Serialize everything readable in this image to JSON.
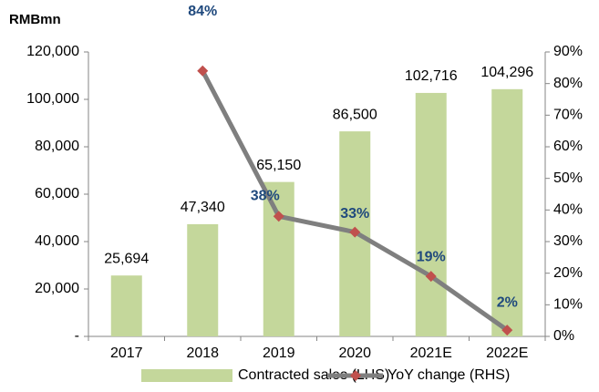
{
  "chart_data": {
    "type": "bar_line",
    "y_label": "RMBmn",
    "categories": [
      "2017",
      "2018",
      "2019",
      "2020",
      "2021E",
      "2022E"
    ],
    "series": [
      {
        "name": "Contracted sales (LHS)",
        "type": "bar",
        "color": "#c4d79b",
        "axis": "y",
        "values": [
          25694,
          47340,
          65150,
          86500,
          102716,
          104296
        ],
        "value_labels": [
          "25,694",
          "47,340",
          "65,150",
          "86,500",
          "102,716",
          "104,296"
        ]
      },
      {
        "name": "YoY change (RHS)",
        "type": "line",
        "color": "#7f7f7f",
        "marker_color": "#c0504d",
        "axis": "y2",
        "values": [
          null,
          84,
          38,
          33,
          19,
          2
        ],
        "value_labels": [
          null,
          "84%",
          "38%",
          "33%",
          "19%",
          "2%"
        ]
      }
    ],
    "ylim": [
      0,
      120000
    ],
    "yticks": [
      {
        "value": 0,
        "label": "-"
      },
      {
        "value": 20000,
        "label": "20,000"
      },
      {
        "value": 40000,
        "label": "40,000"
      },
      {
        "value": 60000,
        "label": "60,000"
      },
      {
        "value": 80000,
        "label": "80,000"
      },
      {
        "value": 100000,
        "label": "100,000"
      },
      {
        "value": 120000,
        "label": "120,000"
      }
    ],
    "y2lim": [
      0,
      90
    ],
    "y2ticks": [
      {
        "value": 0,
        "label": "0%"
      },
      {
        "value": 10,
        "label": "10%"
      },
      {
        "value": 20,
        "label": "20%"
      },
      {
        "value": 30,
        "label": "30%"
      },
      {
        "value": 40,
        "label": "40%"
      },
      {
        "value": 50,
        "label": "50%"
      },
      {
        "value": 60,
        "label": "60%"
      },
      {
        "value": 70,
        "label": "70%"
      },
      {
        "value": 80,
        "label": "80%"
      },
      {
        "value": 90,
        "label": "90%"
      }
    ],
    "legend": "bottom"
  }
}
